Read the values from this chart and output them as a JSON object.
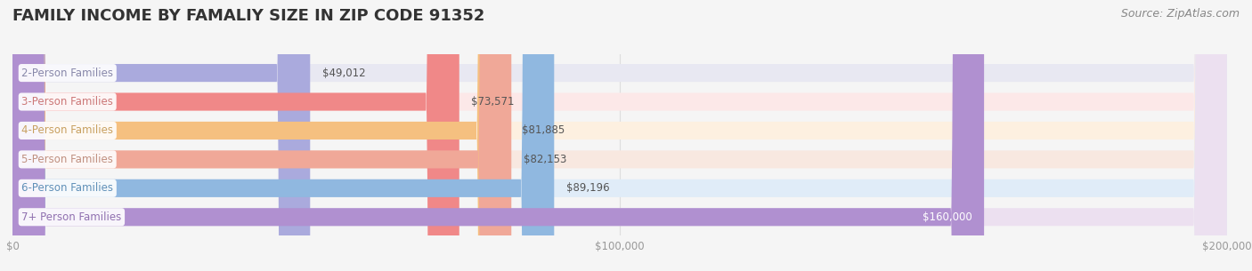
{
  "title": "FAMILY INCOME BY FAMALIY SIZE IN ZIP CODE 91352",
  "source": "Source: ZipAtlas.com",
  "categories": [
    "2-Person Families",
    "3-Person Families",
    "4-Person Families",
    "5-Person Families",
    "6-Person Families",
    "7+ Person Families"
  ],
  "values": [
    49012,
    73571,
    81885,
    82153,
    89196,
    160000
  ],
  "bar_colors": [
    "#aaaadd",
    "#f08888",
    "#f5c080",
    "#f0a898",
    "#90b8e0",
    "#b090d0"
  ],
  "bar_bg_colors": [
    "#e8e8f2",
    "#fce8e8",
    "#fdf0e0",
    "#f8e8e0",
    "#e0ecf8",
    "#ece0f0"
  ],
  "label_colors": [
    "#8888aa",
    "#cc7777",
    "#c8a060",
    "#c09080",
    "#6090b8",
    "#9070b0"
  ],
  "value_labels": [
    "$49,012",
    "$73,571",
    "$81,885",
    "$82,153",
    "$89,196",
    "$160,000"
  ],
  "value_inside": [
    false,
    false,
    false,
    false,
    false,
    true
  ],
  "xlim": [
    0,
    200000
  ],
  "xtick_values": [
    0,
    100000,
    200000
  ],
  "xtick_labels": [
    "$0",
    "$100,000",
    "$200,000"
  ],
  "title_fontsize": 13,
  "bar_label_fontsize": 8.5,
  "value_fontsize": 8.5,
  "source_fontsize": 9,
  "background_color": "#f5f5f5",
  "bar_height": 0.62,
  "title_color": "#333333",
  "source_color": "#888888",
  "grid_color": "#dddddd"
}
